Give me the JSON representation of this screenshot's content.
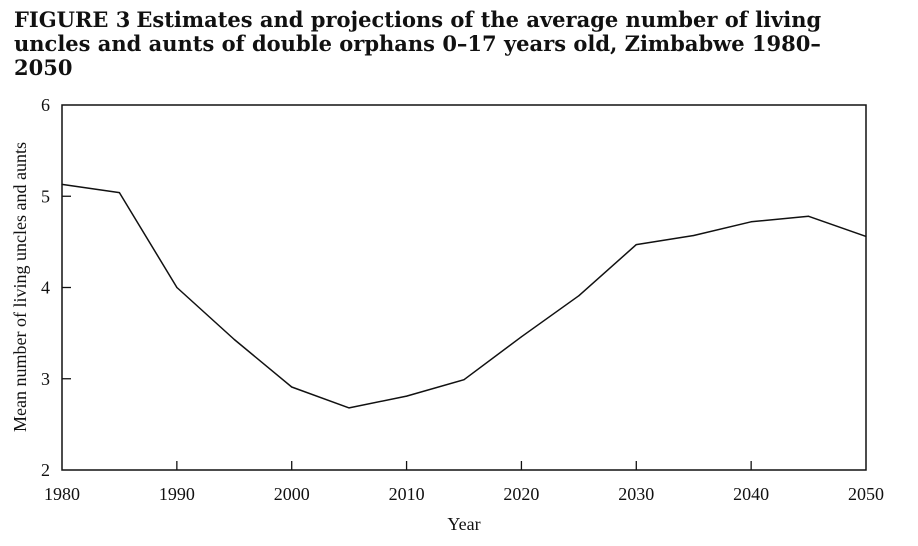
{
  "figure_label": "FIGURE 3",
  "chart_data": {
    "type": "line",
    "title": "Estimates and projections of the average number of living uncles and aunts of double orphans 0–17 years old, Zimbabwe 1980–2050",
    "xlabel": "Year",
    "ylabel": "Mean number of living uncles and aunts",
    "xlim": [
      1980,
      2050
    ],
    "ylim": [
      2,
      6
    ],
    "xticks": [
      "1980",
      "1990",
      "2000",
      "2010",
      "2020",
      "2030",
      "2040",
      "2050"
    ],
    "yticks": [
      "2",
      "3",
      "4",
      "5",
      "6"
    ],
    "grid": false,
    "legend": "none",
    "series": [
      {
        "x": [
          1980,
          1985,
          1990,
          1995,
          2000,
          2005,
          2010,
          2015,
          2020,
          2025,
          2030,
          2035,
          2040,
          2045,
          2050
        ],
        "values": [
          5.13,
          5.04,
          4.0,
          3.43,
          2.91,
          2.68,
          2.81,
          2.99,
          3.46,
          3.91,
          4.47,
          4.57,
          4.72,
          4.78,
          4.56
        ]
      }
    ],
    "line_color": "#111111"
  }
}
